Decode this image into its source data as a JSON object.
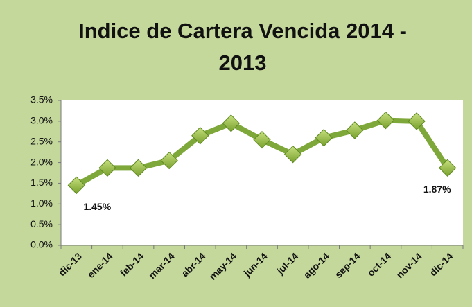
{
  "chart_data": {
    "type": "line",
    "title": "Indice de Cartera Vencida 2014 - 2013",
    "categories": [
      "dic-13",
      "ene-14",
      "feb-14",
      "mar-14",
      "abr-14",
      "may-14",
      "jun-14",
      "jul-14",
      "ago-14",
      "sep-14",
      "oct-14",
      "nov-14",
      "dic-14"
    ],
    "series": [
      {
        "name": "Indice de Cartera Vencida",
        "color": "#7fa83a",
        "values": [
          1.45,
          1.87,
          1.87,
          2.05,
          2.65,
          2.95,
          2.55,
          2.2,
          2.6,
          2.78,
          3.02,
          3.0,
          1.87
        ],
        "value_labels": [
          "1.45%",
          null,
          null,
          null,
          null,
          null,
          null,
          null,
          null,
          null,
          null,
          null,
          "1.87%"
        ]
      }
    ],
    "ylim": [
      0,
      3.5
    ],
    "yticks": [
      {
        "value": 0,
        "label": "0.0%"
      },
      {
        "value": 0.5,
        "label": "0.5%"
      },
      {
        "value": 1,
        "label": "1.0%"
      },
      {
        "value": 1.5,
        "label": "1.5%"
      },
      {
        "value": 2,
        "label": "2.0%"
      },
      {
        "value": 2.5,
        "label": "2.5%"
      },
      {
        "value": 3,
        "label": "3.0%"
      },
      {
        "value": 3.5,
        "label": "3.5%"
      }
    ],
    "grid": false
  }
}
